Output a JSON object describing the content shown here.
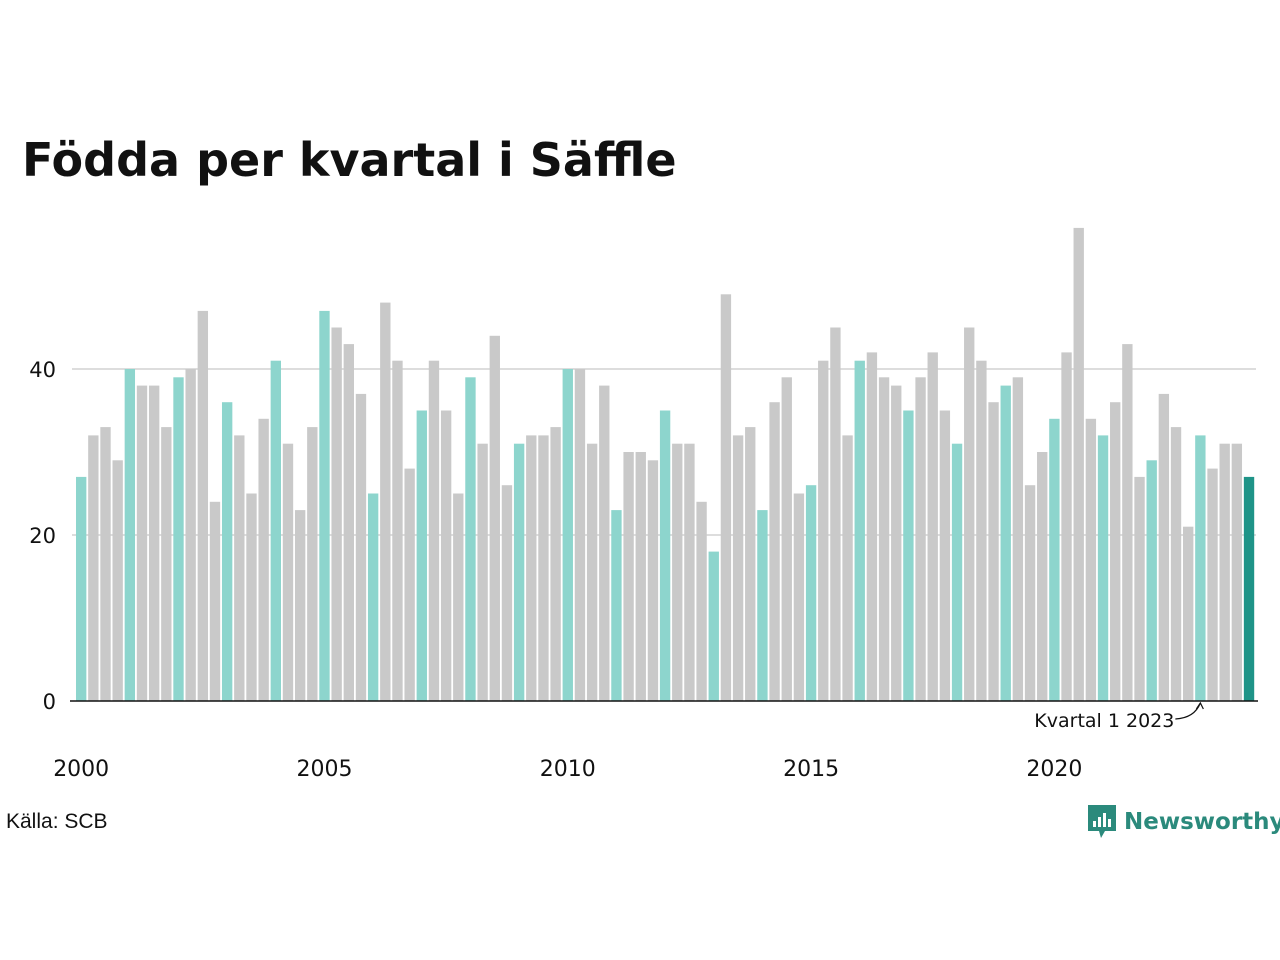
{
  "title": "Födda per kvartal i Säffle",
  "source": "Källa: SCB",
  "brand": "Newsworthy",
  "colors": {
    "q1": "#8dd5cd",
    "other": "#c9c9c9",
    "latest": "#1f9488",
    "brand": "#2b8a7c",
    "grid": "#dddddd",
    "axis": "#111111"
  },
  "chart_data": {
    "type": "bar",
    "title": "Födda per kvartal i Säffle",
    "xlabel": "",
    "ylabel": "",
    "ylim": [
      0,
      60
    ],
    "yticks": [
      0,
      20,
      40
    ],
    "start_year": 2000,
    "start_quarter": 1,
    "x_tick_labels": [
      "2000",
      "2005",
      "2010",
      "2015",
      "2020"
    ],
    "annotation": "Kvartal 1 2023",
    "grid": "horizontal",
    "values": [
      27,
      32,
      33,
      29,
      40,
      38,
      38,
      33,
      39,
      40,
      47,
      24,
      36,
      32,
      25,
      34,
      41,
      31,
      23,
      33,
      47,
      45,
      43,
      37,
      25,
      48,
      41,
      28,
      35,
      41,
      35,
      25,
      39,
      31,
      44,
      26,
      31,
      32,
      32,
      33,
      40,
      40,
      31,
      38,
      23,
      30,
      30,
      29,
      35,
      31,
      31,
      24,
      18,
      49,
      32,
      33,
      23,
      36,
      39,
      25,
      26,
      41,
      45,
      32,
      41,
      42,
      39,
      38,
      35,
      39,
      42,
      35,
      31,
      45,
      41,
      36,
      38,
      39,
      26,
      30,
      34,
      42,
      57,
      34,
      32,
      36,
      43,
      27,
      29,
      37,
      33,
      21,
      32,
      28,
      31,
      31,
      27
    ]
  }
}
